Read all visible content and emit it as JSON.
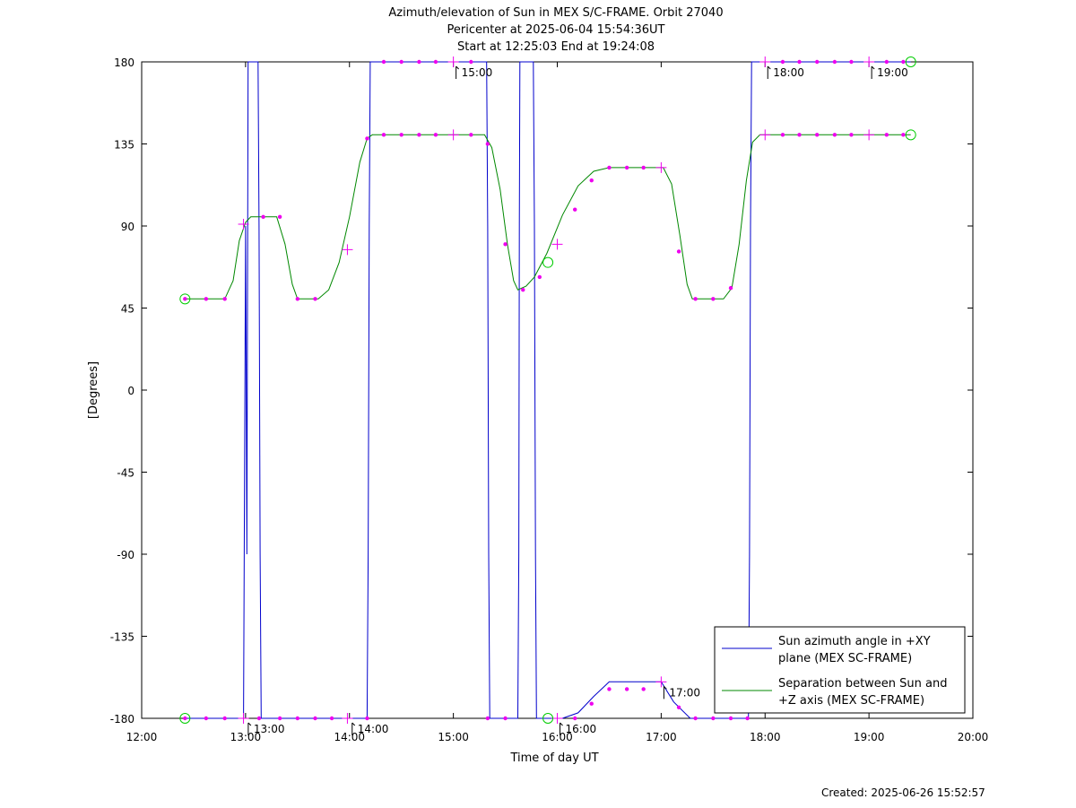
{
  "created": "Created: 2025-06-26 15:52:57",
  "chart_data": {
    "type": "line",
    "title": [
      "Azimuth/elevation of Sun in MEX S/C-FRAME.  Orbit 27040",
      "Pericenter at 2025-06-04 15:54:36UT",
      "Start at 12:25:03 End at 19:24:08"
    ],
    "xlabel": "Time of day UT",
    "ylabel": "[Degrees]",
    "xlim": [
      12,
      20
    ],
    "ylim": [
      -180,
      180
    ],
    "xticks": [
      12,
      13,
      14,
      15,
      16,
      17,
      18,
      19,
      20
    ],
    "xticklabels": [
      "12:00",
      "13:00",
      "14:00",
      "15:00",
      "16:00",
      "17:00",
      "18:00",
      "19:00",
      "20:00"
    ],
    "yticks": [
      180,
      135,
      90,
      45,
      0,
      -45,
      -90,
      -135,
      -180
    ],
    "yticklabels": [
      "180",
      "135",
      "90",
      "45",
      "0",
      "-45",
      "-90",
      "-135",
      "-180"
    ],
    "legend_position": "bottom-right",
    "series": [
      {
        "name": "Sun azimuth angle in +XY plane (MEX SC-FRAME)",
        "legend_lines": [
          "Sun azimuth angle in +XY",
          "plane (MEX SC-FRAME)"
        ],
        "color": "#0000cc",
        "x": [
          12.418,
          12.98,
          13.0,
          13.012,
          13.024,
          13.12,
          13.13,
          13.14,
          13.15,
          14.17,
          14.18,
          14.19,
          14.2,
          15.32,
          15.33,
          15.34,
          15.35,
          15.62,
          15.63,
          15.635,
          15.64,
          15.77,
          15.78,
          15.79,
          15.8,
          16.05,
          16.2,
          16.35,
          16.5,
          16.7,
          16.88,
          17.0,
          17.12,
          17.28,
          17.5,
          17.72,
          17.84,
          17.85,
          17.86,
          17.87,
          19.402
        ],
        "y": [
          -180,
          -180,
          90,
          -90,
          180,
          180,
          90,
          -90,
          -180,
          -180,
          -90,
          90,
          180,
          180,
          90,
          -90,
          -180,
          -180,
          -90,
          90,
          180,
          180,
          90,
          -90,
          -180,
          -180,
          -177,
          -168,
          -160,
          -160,
          -160,
          -160,
          -171,
          -180,
          -180,
          -180,
          -180,
          -90,
          90,
          180,
          180
        ]
      },
      {
        "name": "Separation between Sun and +Z axis (MEX SC-FRAME)",
        "legend_lines": [
          "Separation between Sun and",
          "+Z axis (MEX SC-FRAME)"
        ],
        "color": "#008800",
        "x": [
          12.418,
          12.8,
          12.88,
          12.94,
          13.0,
          13.05,
          13.3,
          13.38,
          13.45,
          13.5,
          13.7,
          13.8,
          13.9,
          14.0,
          14.1,
          14.17,
          14.22,
          15.3,
          15.37,
          15.45,
          15.52,
          15.58,
          15.62,
          15.7,
          15.78,
          15.9,
          16.05,
          16.2,
          16.35,
          16.5,
          17.02,
          17.1,
          17.18,
          17.25,
          17.3,
          17.6,
          17.68,
          17.75,
          17.82,
          17.88,
          17.95,
          19.402
        ],
        "y": [
          50,
          50,
          60,
          82,
          92,
          95,
          95,
          80,
          58,
          50,
          50,
          55,
          70,
          95,
          125,
          138,
          140,
          140,
          133,
          110,
          80,
          60,
          55,
          57,
          62,
          75,
          96,
          112,
          120,
          122,
          122,
          113,
          85,
          58,
          50,
          50,
          56,
          80,
          115,
          136,
          140,
          140
        ]
      }
    ],
    "markers": {
      "color": "#ee00ee",
      "dots": [
        {
          "x": 12.417,
          "y": -180
        },
        {
          "x": 12.62,
          "y": -180
        },
        {
          "x": 12.8,
          "y": -180
        },
        {
          "x": 13.13,
          "y": -180
        },
        {
          "x": 13.33,
          "y": -180
        },
        {
          "x": 13.5,
          "y": -180
        },
        {
          "x": 13.67,
          "y": -180
        },
        {
          "x": 13.83,
          "y": -180
        },
        {
          "x": 14.17,
          "y": -180
        },
        {
          "x": 15.33,
          "y": -180
        },
        {
          "x": 15.5,
          "y": -180
        },
        {
          "x": 16.17,
          "y": -180
        },
        {
          "x": 16.33,
          "y": -172
        },
        {
          "x": 16.5,
          "y": -164
        },
        {
          "x": 16.67,
          "y": -164
        },
        {
          "x": 16.83,
          "y": -164
        },
        {
          "x": 17.17,
          "y": -174
        },
        {
          "x": 17.33,
          "y": -180
        },
        {
          "x": 17.5,
          "y": -180
        },
        {
          "x": 17.67,
          "y": -180
        },
        {
          "x": 17.83,
          "y": -180
        },
        {
          "x": 14.33,
          "y": 180
        },
        {
          "x": 14.5,
          "y": 180
        },
        {
          "x": 14.67,
          "y": 180
        },
        {
          "x": 14.83,
          "y": 180
        },
        {
          "x": 15.17,
          "y": 180
        },
        {
          "x": 18.17,
          "y": 180
        },
        {
          "x": 18.33,
          "y": 180
        },
        {
          "x": 18.5,
          "y": 180
        },
        {
          "x": 18.67,
          "y": 180
        },
        {
          "x": 18.83,
          "y": 180
        },
        {
          "x": 19.17,
          "y": 180
        },
        {
          "x": 19.33,
          "y": 180
        },
        {
          "x": 12.417,
          "y": 50
        },
        {
          "x": 12.62,
          "y": 50
        },
        {
          "x": 12.8,
          "y": 50
        },
        {
          "x": 13.17,
          "y": 95
        },
        {
          "x": 13.33,
          "y": 95
        },
        {
          "x": 13.5,
          "y": 50
        },
        {
          "x": 13.67,
          "y": 50
        },
        {
          "x": 14.17,
          "y": 138
        },
        {
          "x": 14.33,
          "y": 140
        },
        {
          "x": 14.5,
          "y": 140
        },
        {
          "x": 14.67,
          "y": 140
        },
        {
          "x": 14.83,
          "y": 140
        },
        {
          "x": 15.17,
          "y": 140
        },
        {
          "x": 15.33,
          "y": 135
        },
        {
          "x": 15.5,
          "y": 80
        },
        {
          "x": 15.67,
          "y": 55
        },
        {
          "x": 15.83,
          "y": 62
        },
        {
          "x": 16.17,
          "y": 99
        },
        {
          "x": 16.33,
          "y": 115
        },
        {
          "x": 16.5,
          "y": 122
        },
        {
          "x": 16.67,
          "y": 122
        },
        {
          "x": 16.83,
          "y": 122
        },
        {
          "x": 17.17,
          "y": 76
        },
        {
          "x": 17.33,
          "y": 50
        },
        {
          "x": 17.5,
          "y": 50
        },
        {
          "x": 17.67,
          "y": 56
        },
        {
          "x": 18.17,
          "y": 140
        },
        {
          "x": 18.33,
          "y": 140
        },
        {
          "x": 18.5,
          "y": 140
        },
        {
          "x": 18.67,
          "y": 140
        },
        {
          "x": 18.83,
          "y": 140
        },
        {
          "x": 19.17,
          "y": 140
        },
        {
          "x": 19.33,
          "y": 140
        }
      ],
      "crosses": [
        {
          "x": 12.98,
          "y": -180
        },
        {
          "x": 13.98,
          "y": -180
        },
        {
          "x": 15.0,
          "y": 180
        },
        {
          "x": 16.0,
          "y": -180
        },
        {
          "x": 17.0,
          "y": -160
        },
        {
          "x": 18.0,
          "y": 180
        },
        {
          "x": 19.0,
          "y": 180
        },
        {
          "x": 12.98,
          "y": 91
        },
        {
          "x": 13.98,
          "y": 77
        },
        {
          "x": 15.0,
          "y": 140
        },
        {
          "x": 16.0,
          "y": 80
        },
        {
          "x": 17.0,
          "y": 122
        },
        {
          "x": 18.0,
          "y": 140
        },
        {
          "x": 19.0,
          "y": 140
        }
      ]
    },
    "circles": {
      "color": "#00cc00",
      "points": [
        {
          "x": 12.417,
          "y": -180
        },
        {
          "x": 12.417,
          "y": 50
        },
        {
          "x": 15.91,
          "y": -180
        },
        {
          "x": 15.91,
          "y": 70
        },
        {
          "x": 19.402,
          "y": 180
        },
        {
          "x": 19.402,
          "y": 140
        }
      ]
    },
    "hour_annotations": [
      {
        "label": "13:00",
        "x": 13.0,
        "y": -180
      },
      {
        "label": "14:00",
        "x": 14.0,
        "y": -180
      },
      {
        "label": "15:00",
        "x": 15.0,
        "y": 180
      },
      {
        "label": "16:00",
        "x": 16.0,
        "y": -180
      },
      {
        "label": "17:00",
        "x": 17.0,
        "y": -160
      },
      {
        "label": "18:00",
        "x": 18.0,
        "y": 180
      },
      {
        "label": "19:00",
        "x": 19.0,
        "y": 180
      }
    ]
  }
}
